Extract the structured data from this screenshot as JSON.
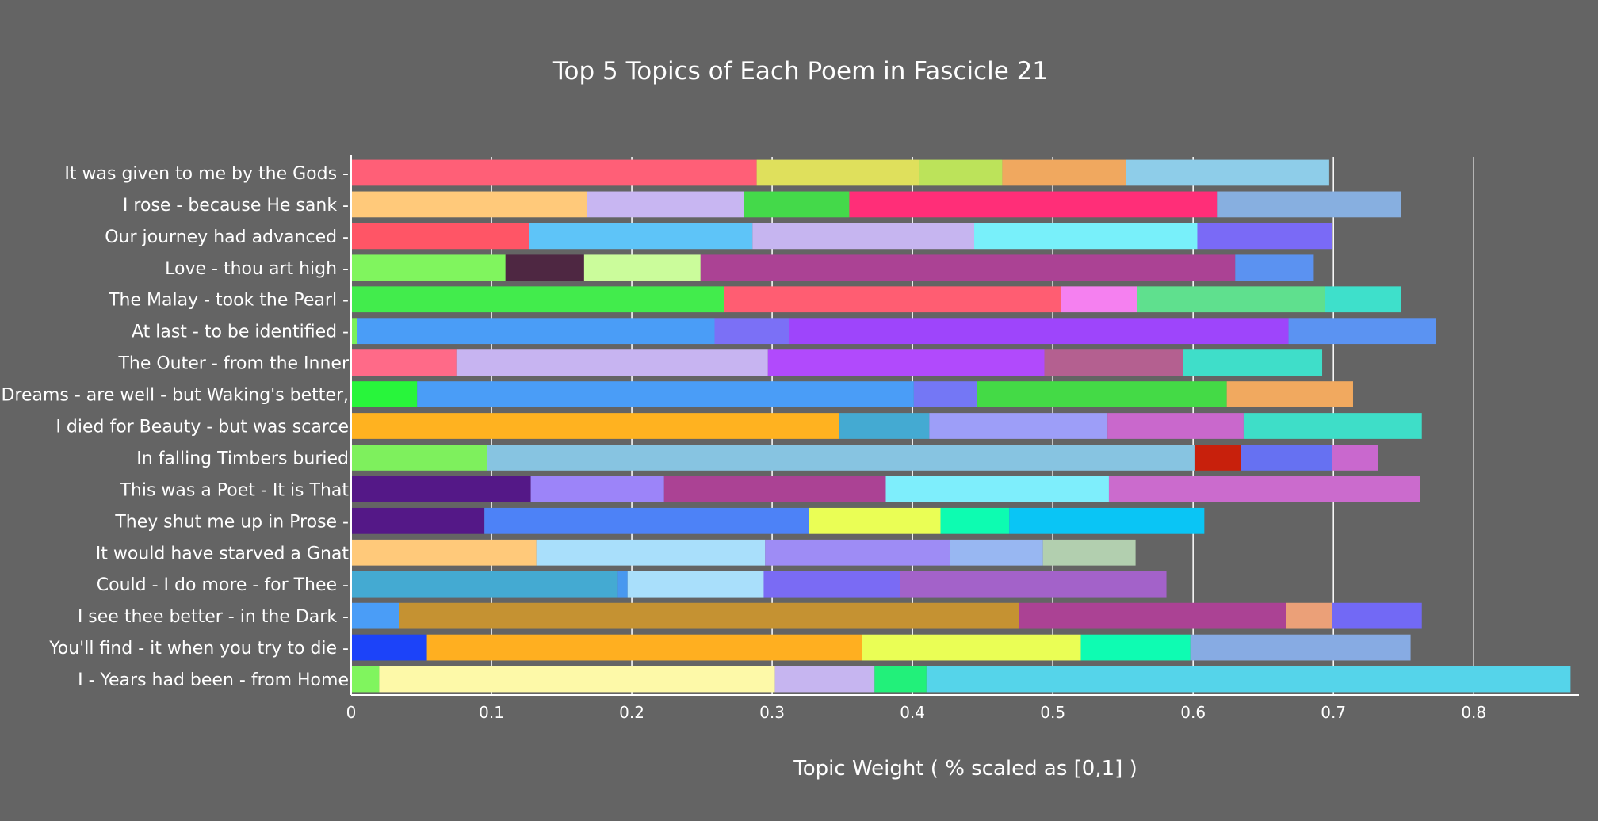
{
  "chart_data": {
    "type": "bar",
    "orientation": "horizontal",
    "stacked": true,
    "title": "Top 5 Topics of Each Poem in Fascicle 21",
    "xlabel": "Topic Weight ( % scaled as [0,1]  )",
    "ylabel": "",
    "xlim": [
      0,
      0.875
    ],
    "xticks": [
      0,
      0.1,
      0.2,
      0.3,
      0.4,
      0.5,
      0.6,
      0.7,
      0.8
    ],
    "grid": true,
    "legend": "none",
    "categories": [
      "It was given to me by the Gods -",
      "I rose - because He sank -",
      "Our journey had advanced -",
      "Love - thou art high -",
      "The Malay - took the Pearl -",
      "At last - to be identified -",
      "The Outer - from the Inner",
      "Dreams - are well - but Waking's better,",
      "I died for Beauty - but was scarce",
      "In falling Timbers buried",
      "This was a Poet - It is That",
      "They shut me up in Prose -",
      "It would have starved a Gnat",
      "Could - I do more - for Thee -",
      "I see thee better - in the Dark -",
      "You'll find - it when you try to die -",
      "I - Years had been - from Home"
    ],
    "segments": [
      [
        {
          "value": 0.289,
          "color": "#ff5f77"
        },
        {
          "value": 0.116,
          "color": "#dfe05c"
        },
        {
          "value": 0.059,
          "color": "#bce35a"
        },
        {
          "value": 0.088,
          "color": "#f0a85f"
        },
        {
          "value": 0.145,
          "color": "#8ecde9"
        }
      ],
      [
        {
          "value": 0.168,
          "color": "#ffc97a"
        },
        {
          "value": 0.112,
          "color": "#c8b6f2"
        },
        {
          "value": 0.075,
          "color": "#44d94a"
        },
        {
          "value": 0.262,
          "color": "#ff2e78"
        },
        {
          "value": 0.131,
          "color": "#87afe0"
        }
      ],
      [
        {
          "value": 0.127,
          "color": "#ff5566"
        },
        {
          "value": 0.159,
          "color": "#5ec4f8"
        },
        {
          "value": 0.158,
          "color": "#c6b5f0"
        },
        {
          "value": 0.159,
          "color": "#78f0fa"
        },
        {
          "value": 0.096,
          "color": "#7a6af6"
        }
      ],
      [
        {
          "value": 0.11,
          "color": "#80f55e"
        },
        {
          "value": 0.056,
          "color": "#4e2742"
        },
        {
          "value": 0.083,
          "color": "#cbfc9b"
        },
        {
          "value": 0.381,
          "color": "#ab4294"
        },
        {
          "value": 0.056,
          "color": "#5b92f1"
        }
      ],
      [
        {
          "value": 0.266,
          "color": "#42ec4c"
        },
        {
          "value": 0.24,
          "color": "#ff5d72"
        },
        {
          "value": 0.054,
          "color": "#f580f0"
        },
        {
          "value": 0.134,
          "color": "#5fe08e"
        },
        {
          "value": 0.054,
          "color": "#3ee0cb"
        }
      ],
      [
        {
          "value": 0.004,
          "color": "#7af05a"
        },
        {
          "value": 0.255,
          "color": "#4a9df7"
        },
        {
          "value": 0.053,
          "color": "#7b70f6"
        },
        {
          "value": 0.356,
          "color": "#9e45fb"
        },
        {
          "value": 0.105,
          "color": "#5b93f2"
        }
      ],
      [
        {
          "value": 0.075,
          "color": "#ff6a88"
        },
        {
          "value": 0.222,
          "color": "#c7b4f1"
        },
        {
          "value": 0.197,
          "color": "#b14afc"
        },
        {
          "value": 0.099,
          "color": "#b46090"
        },
        {
          "value": 0.099,
          "color": "#3fdec9"
        }
      ],
      [
        {
          "value": 0.047,
          "color": "#28f53b"
        },
        {
          "value": 0.354,
          "color": "#4a9df7"
        },
        {
          "value": 0.045,
          "color": "#7477f5"
        },
        {
          "value": 0.178,
          "color": "#44da46"
        },
        {
          "value": 0.09,
          "color": "#f1a95f"
        }
      ],
      [
        {
          "value": 0.348,
          "color": "#ffb220"
        },
        {
          "value": 0.064,
          "color": "#44aad2"
        },
        {
          "value": 0.127,
          "color": "#9d9ef8"
        },
        {
          "value": 0.097,
          "color": "#c968cc"
        },
        {
          "value": 0.127,
          "color": "#3edec8"
        }
      ],
      [
        {
          "value": 0.097,
          "color": "#7ef05d"
        },
        {
          "value": 0.504,
          "color": "#87c4e1"
        },
        {
          "value": 0.033,
          "color": "#c8200c"
        },
        {
          "value": 0.065,
          "color": "#6671f2"
        },
        {
          "value": 0.033,
          "color": "#c968ce"
        }
      ],
      [
        {
          "value": 0.128,
          "color": "#541887"
        },
        {
          "value": 0.095,
          "color": "#9c84f9"
        },
        {
          "value": 0.158,
          "color": "#ab4294"
        },
        {
          "value": 0.159,
          "color": "#7eeefc"
        },
        {
          "value": 0.222,
          "color": "#cb6bcd"
        }
      ],
      [
        {
          "value": 0.095,
          "color": "#541887"
        },
        {
          "value": 0.231,
          "color": "#4d82f7"
        },
        {
          "value": 0.094,
          "color": "#eafe55"
        },
        {
          "value": 0.049,
          "color": "#0dfcb1"
        },
        {
          "value": 0.139,
          "color": "#0ac5f5"
        }
      ],
      [
        {
          "value": 0.132,
          "color": "#ffc97a"
        },
        {
          "value": 0.163,
          "color": "#a9dffb"
        },
        {
          "value": 0.132,
          "color": "#9e8cf5"
        },
        {
          "value": 0.066,
          "color": "#98b7f2"
        },
        {
          "value": 0.066,
          "color": "#b2cfaf"
        }
      ],
      [
        {
          "value": 0.19,
          "color": "#44aad2"
        },
        {
          "value": 0.007,
          "color": "#4898ef"
        },
        {
          "value": 0.097,
          "color": "#a9dffb"
        },
        {
          "value": 0.097,
          "color": "#7a6bf4"
        },
        {
          "value": 0.19,
          "color": "#a362c9"
        }
      ],
      [
        {
          "value": 0.034,
          "color": "#4a9df7"
        },
        {
          "value": 0.442,
          "color": "#c59232"
        },
        {
          "value": 0.19,
          "color": "#ab4294"
        },
        {
          "value": 0.033,
          "color": "#eba078"
        },
        {
          "value": 0.064,
          "color": "#7269f5"
        }
      ],
      [
        {
          "value": 0.054,
          "color": "#1c43f9"
        },
        {
          "value": 0.31,
          "color": "#ffaf20"
        },
        {
          "value": 0.156,
          "color": "#eafe55"
        },
        {
          "value": 0.078,
          "color": "#0efcb2"
        },
        {
          "value": 0.157,
          "color": "#87abe3"
        }
      ],
      [
        {
          "value": 0.02,
          "color": "#80f55e"
        },
        {
          "value": 0.282,
          "color": "#fdf9a8"
        },
        {
          "value": 0.071,
          "color": "#c6b5f0"
        },
        {
          "value": 0.037,
          "color": "#22f07a"
        },
        {
          "value": 0.459,
          "color": "#55d4ea"
        }
      ]
    ]
  },
  "colors": {
    "background": "#646464",
    "gridline": "#ffffff",
    "text": "#ffffff"
  }
}
